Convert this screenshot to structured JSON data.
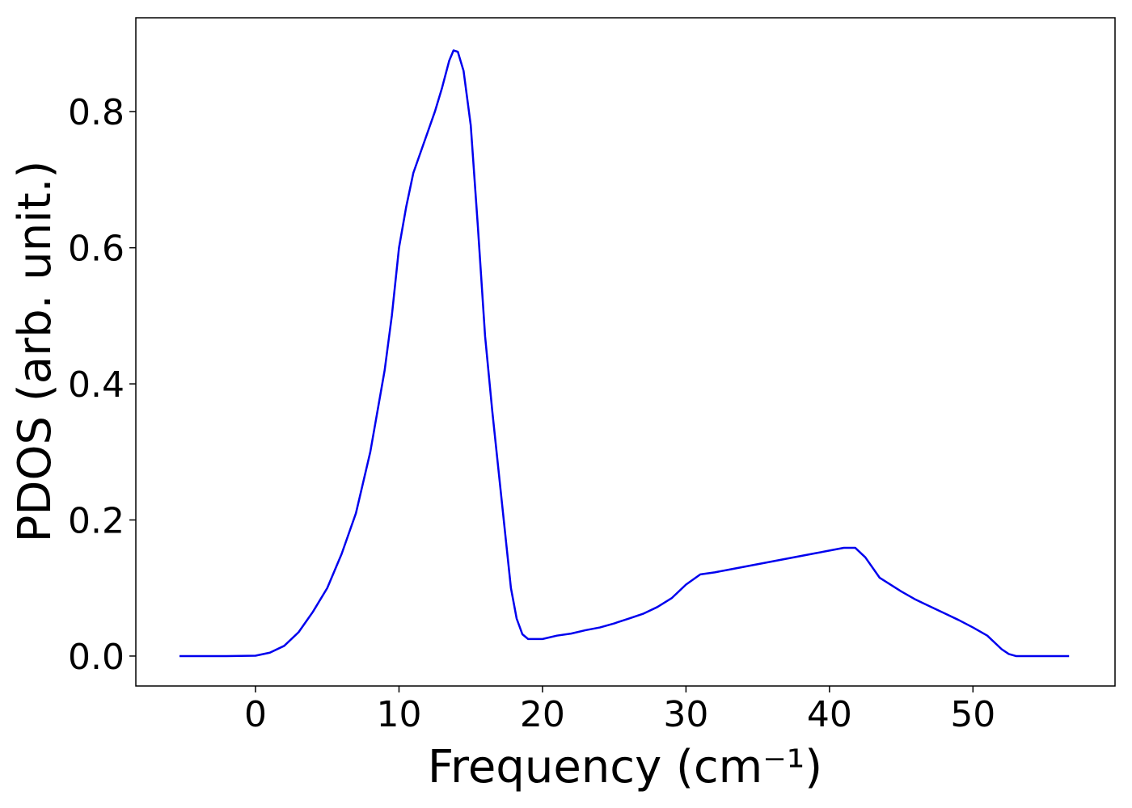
{
  "chart_data": {
    "type": "line",
    "x_label": "Frequency (cm⁻¹)",
    "y_label": "PDOS (arb. unit.)",
    "series": [
      {
        "name": "PDOS",
        "color": "#0000ee",
        "x": [
          -5.3,
          -2,
          0,
          1,
          2,
          3,
          4,
          5,
          6,
          7,
          8,
          9,
          9.5,
          10,
          10.5,
          11,
          11.5,
          12,
          12.5,
          13,
          13.5,
          13.8,
          14.1,
          14.5,
          15,
          15.5,
          16,
          16.5,
          17,
          17.5,
          17.8,
          18.2,
          18.6,
          19,
          20,
          21,
          22,
          23,
          24,
          25,
          26,
          27,
          28,
          29,
          30,
          31,
          32,
          33,
          34,
          35,
          36,
          37,
          38,
          39,
          40,
          41,
          41.8,
          42.5,
          43.5,
          45,
          46,
          47,
          48,
          49,
          50,
          51,
          52,
          52.5,
          53,
          56.7
        ],
        "values": [
          0,
          0,
          0.0005,
          0.005,
          0.015,
          0.035,
          0.065,
          0.1,
          0.15,
          0.21,
          0.3,
          0.42,
          0.5,
          0.6,
          0.66,
          0.71,
          0.74,
          0.77,
          0.8,
          0.835,
          0.875,
          0.89,
          0.888,
          0.86,
          0.78,
          0.63,
          0.47,
          0.36,
          0.26,
          0.16,
          0.1,
          0.055,
          0.032,
          0.025,
          0.025,
          0.03,
          0.033,
          0.038,
          0.042,
          0.048,
          0.055,
          0.062,
          0.072,
          0.085,
          0.105,
          0.12,
          0.123,
          0.127,
          0.131,
          0.135,
          0.139,
          0.143,
          0.147,
          0.151,
          0.155,
          0.159,
          0.159,
          0.145,
          0.115,
          0.095,
          0.083,
          0.073,
          0.063,
          0.053,
          0.042,
          0.03,
          0.01,
          0.003,
          0,
          0
        ]
      }
    ],
    "xlim": [
      -8.34,
      59.9
    ],
    "xticks": [
      0,
      10,
      20,
      30,
      40,
      50
    ],
    "ylim": [
      -0.044,
      0.938
    ],
    "yticks": [
      {
        "value": 0,
        "label": "0.0"
      },
      0.2,
      0.4,
      0.6,
      0.8
    ],
    "grid": false
  }
}
